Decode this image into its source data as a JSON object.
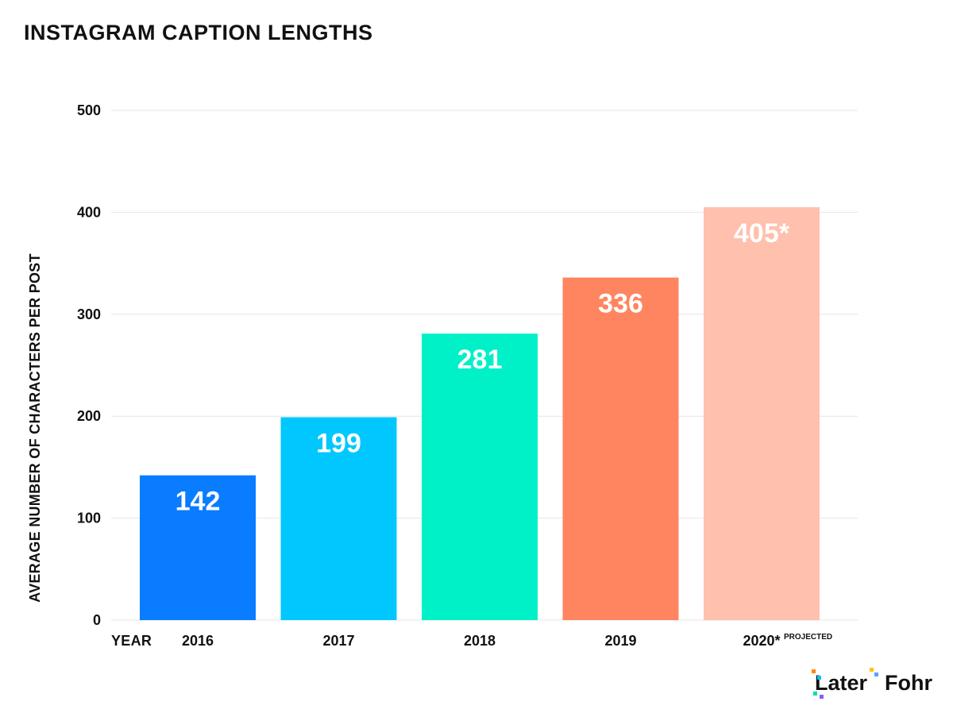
{
  "chart_data": {
    "type": "bar",
    "title": "INSTAGRAM CAPTION LENGTHS",
    "xlabel": "YEAR",
    "ylabel": "AVERAGE NUMBER OF CHARACTERS PER POST",
    "categories": [
      "2016",
      "2017",
      "2018",
      "2019",
      "2020*"
    ],
    "category_notes": [
      "",
      "",
      "",
      "",
      "PROJECTED"
    ],
    "values": [
      142,
      199,
      281,
      336,
      405
    ],
    "value_labels": [
      "142",
      "199",
      "281",
      "336",
      "405*"
    ],
    "colors": [
      "#0a7cff",
      "#00c8ff",
      "#00f0c8",
      "#ff8560",
      "#ffc0ad"
    ],
    "yticks": [
      0,
      100,
      200,
      300,
      400,
      500
    ],
    "ylim": [
      0,
      500
    ],
    "grid": true,
    "gridColor": "#e6e6e6",
    "legend": "none"
  },
  "logos": {
    "later": "Later",
    "fohr": "Fohr"
  }
}
